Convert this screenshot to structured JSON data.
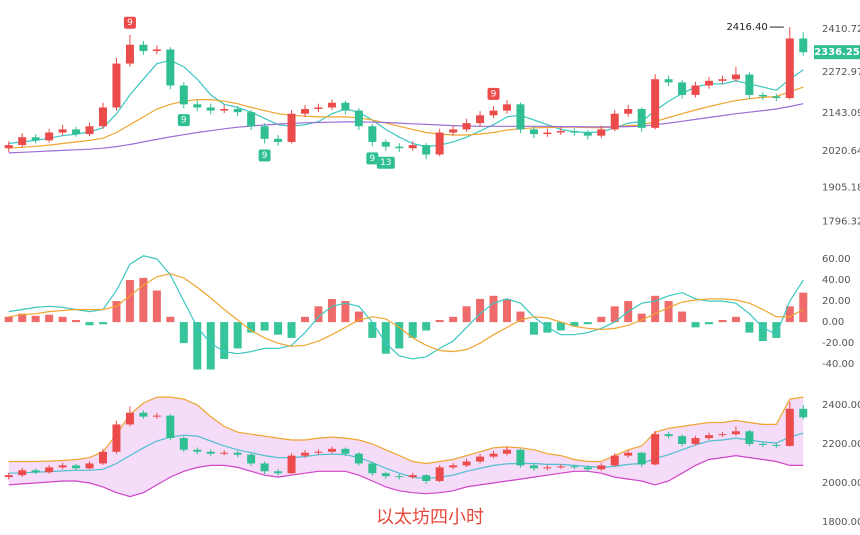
{
  "chart_data": [
    {
      "type": "candlestick",
      "up_color": "#ec4b4b",
      "down_color": "#2fbf93",
      "ylim": [
        1750,
        2490
      ],
      "yticks": [
        1796.32,
        1905.18,
        2020.64,
        2143.09,
        2272.97,
        2410.72
      ],
      "candles": [
        [
          2030,
          2052,
          2018,
          2040
        ],
        [
          2040,
          2078,
          2032,
          2065
        ],
        [
          2065,
          2074,
          2046,
          2055
        ],
        [
          2055,
          2092,
          2048,
          2080
        ],
        [
          2080,
          2104,
          2070,
          2090
        ],
        [
          2090,
          2098,
          2066,
          2075
        ],
        [
          2075,
          2112,
          2068,
          2100
        ],
        [
          2100,
          2175,
          2092,
          2160
        ],
        [
          2160,
          2318,
          2150,
          2300
        ],
        [
          2300,
          2392,
          2290,
          2360
        ],
        [
          2360,
          2372,
          2328,
          2340
        ],
        [
          2340,
          2358,
          2330,
          2345
        ],
        [
          2345,
          2352,
          2218,
          2230
        ],
        [
          2230,
          2240,
          2158,
          2170
        ],
        [
          2170,
          2182,
          2148,
          2160
        ],
        [
          2160,
          2172,
          2138,
          2150
        ],
        [
          2150,
          2168,
          2142,
          2155
        ],
        [
          2155,
          2164,
          2132,
          2145
        ],
        [
          2145,
          2152,
          2088,
          2100
        ],
        [
          2100,
          2110,
          2045,
          2060
        ],
        [
          2060,
          2072,
          2038,
          2050
        ],
        [
          2050,
          2152,
          2045,
          2140
        ],
        [
          2140,
          2168,
          2130,
          2155
        ],
        [
          2155,
          2172,
          2145,
          2160
        ],
        [
          2160,
          2186,
          2152,
          2175
        ],
        [
          2175,
          2182,
          2138,
          2150
        ],
        [
          2150,
          2158,
          2088,
          2100
        ],
        [
          2100,
          2108,
          2036,
          2050
        ],
        [
          2050,
          2058,
          2022,
          2035
        ],
        [
          2035,
          2046,
          2018,
          2030
        ],
        [
          2030,
          2052,
          2022,
          2040
        ],
        [
          2040,
          2046,
          1995,
          2010
        ],
        [
          2010,
          2092,
          2004,
          2080
        ],
        [
          2080,
          2102,
          2070,
          2090
        ],
        [
          2090,
          2124,
          2082,
          2110
        ],
        [
          2110,
          2148,
          2100,
          2135
        ],
        [
          2135,
          2165,
          2126,
          2150
        ],
        [
          2150,
          2184,
          2140,
          2170
        ],
        [
          2170,
          2176,
          2078,
          2090
        ],
        [
          2090,
          2098,
          2062,
          2075
        ],
        [
          2075,
          2092,
          2066,
          2080
        ],
        [
          2080,
          2096,
          2072,
          2085
        ],
        [
          2085,
          2094,
          2070,
          2080
        ],
        [
          2080,
          2088,
          2058,
          2070
        ],
        [
          2070,
          2102,
          2062,
          2090
        ],
        [
          2090,
          2152,
          2084,
          2140
        ],
        [
          2140,
          2168,
          2130,
          2155
        ],
        [
          2155,
          2160,
          2082,
          2095
        ],
        [
          2095,
          2266,
          2090,
          2250
        ],
        [
          2250,
          2262,
          2228,
          2240
        ],
        [
          2240,
          2248,
          2188,
          2200
        ],
        [
          2200,
          2242,
          2192,
          2230
        ],
        [
          2230,
          2258,
          2220,
          2245
        ],
        [
          2245,
          2262,
          2236,
          2250
        ],
        [
          2250,
          2290,
          2242,
          2265
        ],
        [
          2265,
          2272,
          2188,
          2200
        ],
        [
          2200,
          2208,
          2184,
          2195
        ],
        [
          2195,
          2204,
          2180,
          2190
        ],
        [
          2190,
          2416.4,
          2185,
          2380
        ],
        [
          2380,
          2400,
          2325,
          2336.25
        ]
      ],
      "max_label": "2416.40",
      "ma": [
        {
          "color": "#3cc7c0",
          "values": [
            2045,
            2050,
            2055,
            2062,
            2070,
            2075,
            2082,
            2095,
            2140,
            2200,
            2250,
            2300,
            2310,
            2290,
            2250,
            2200,
            2170,
            2160,
            2145,
            2125,
            2105,
            2100,
            2105,
            2115,
            2140,
            2155,
            2145,
            2120,
            2090,
            2065,
            2045,
            2035,
            2040,
            2050,
            2065,
            2085,
            2105,
            2130,
            2135,
            2120,
            2105,
            2090,
            2082,
            2080,
            2082,
            2095,
            2110,
            2115,
            2150,
            2180,
            2205,
            2225,
            2235,
            2235,
            2245,
            2235,
            2225,
            2215,
            2250,
            2280
          ]
        },
        {
          "color": "#f0a530",
          "values": [
            2030,
            2033,
            2036,
            2040,
            2045,
            2050,
            2055,
            2062,
            2080,
            2105,
            2130,
            2155,
            2170,
            2180,
            2185,
            2185,
            2180,
            2172,
            2160,
            2150,
            2140,
            2135,
            2132,
            2130,
            2130,
            2130,
            2127,
            2120,
            2110,
            2100,
            2090,
            2080,
            2075,
            2072,
            2072,
            2075,
            2080,
            2088,
            2092,
            2095,
            2096,
            2097,
            2097,
            2096,
            2095,
            2098,
            2102,
            2104,
            2115,
            2128,
            2140,
            2152,
            2163,
            2173,
            2182,
            2188,
            2192,
            2195,
            2210,
            2225
          ]
        },
        {
          "color": "#9b6fd8",
          "values": [
            2015,
            2017,
            2019,
            2021,
            2023,
            2025,
            2027,
            2030,
            2035,
            2042,
            2050,
            2058,
            2066,
            2073,
            2080,
            2086,
            2092,
            2097,
            2101,
            2104,
            2107,
            2109,
            2111,
            2112,
            2113,
            2114,
            2114,
            2113,
            2112,
            2110,
            2108,
            2106,
            2104,
            2102,
            2101,
            2100,
            2100,
            2100,
            2100,
            2100,
            2100,
            2099,
            2099,
            2098,
            2098,
            2098,
            2099,
            2100,
            2105,
            2110,
            2116,
            2122,
            2128,
            2134,
            2140,
            2145,
            2150,
            2155,
            2163,
            2172
          ]
        }
      ],
      "td_above": [
        null,
        null,
        null,
        null,
        null,
        null,
        null,
        null,
        null,
        "9",
        null,
        null,
        null,
        null,
        null,
        null,
        null,
        null,
        null,
        null,
        null,
        null,
        null,
        null,
        null,
        null,
        null,
        null,
        null,
        null,
        null,
        null,
        null,
        null,
        null,
        null,
        "9",
        null,
        null,
        null,
        null,
        null,
        null,
        null,
        null,
        null,
        null,
        null,
        null,
        null,
        null,
        null,
        null,
        null,
        null,
        null,
        null,
        null,
        null,
        null
      ],
      "td_below": [
        null,
        null,
        null,
        null,
        null,
        null,
        null,
        null,
        null,
        null,
        null,
        null,
        null,
        "9",
        null,
        null,
        null,
        null,
        null,
        "9",
        null,
        null,
        null,
        null,
        null,
        null,
        null,
        "9",
        "13",
        null,
        null,
        null,
        null,
        null,
        null,
        null,
        null,
        null,
        null,
        null,
        null,
        null,
        null,
        null,
        null,
        null,
        null,
        null,
        null,
        null,
        null,
        null,
        null,
        null,
        null,
        null,
        null,
        null,
        null,
        null
      ]
    },
    {
      "type": "macd",
      "up_color": "#ef6a6a",
      "down_color": "#36c49b",
      "ylim": [
        -55,
        78
      ],
      "yticks": [
        {
          "value": -40,
          "label": "-40.00"
        },
        {
          "value": -20,
          "label": "-20.00"
        },
        {
          "value": 0,
          "label": "0.00"
        },
        {
          "value": 20,
          "label": "20.00"
        },
        {
          "value": 40,
          "label": "40.00"
        },
        {
          "value": 60,
          "label": "60.00"
        }
      ],
      "values": [
        5,
        8,
        6,
        7,
        5,
        2,
        -3,
        -2,
        20,
        40,
        42,
        30,
        5,
        -20,
        -45,
        -45,
        -35,
        -25,
        -10,
        -8,
        -12,
        -15,
        5,
        15,
        22,
        20,
        10,
        -15,
        -30,
        -25,
        -15,
        -8,
        2,
        5,
        15,
        22,
        25,
        22,
        10,
        -12,
        -10,
        -8,
        -4,
        -2,
        5,
        15,
        20,
        8,
        25,
        20,
        10,
        -5,
        -2,
        2,
        5,
        -10,
        -18,
        -15,
        15,
        28
      ],
      "lines": [
        {
          "color": "#3cc7c0",
          "values": [
            10,
            12,
            14,
            15,
            14,
            12,
            10,
            12,
            30,
            55,
            63,
            60,
            45,
            20,
            -5,
            -20,
            -28,
            -30,
            -28,
            -25,
            -25,
            -22,
            -10,
            5,
            15,
            18,
            15,
            0,
            -20,
            -32,
            -35,
            -33,
            -25,
            -18,
            -5,
            8,
            18,
            22,
            18,
            5,
            -5,
            -12,
            -12,
            -10,
            -6,
            0,
            10,
            18,
            20,
            25,
            28,
            22,
            20,
            20,
            18,
            8,
            -5,
            -12,
            20,
            40
          ]
        },
        {
          "color": "#f0a530",
          "values": [
            5,
            7,
            8,
            10,
            11,
            12,
            12,
            12,
            15,
            25,
            35,
            43,
            46,
            42,
            33,
            23,
            12,
            2,
            -8,
            -15,
            -20,
            -23,
            -22,
            -18,
            -12,
            -5,
            2,
            5,
            3,
            -5,
            -15,
            -22,
            -27,
            -28,
            -26,
            -20,
            -12,
            -5,
            2,
            5,
            4,
            0,
            -4,
            -6,
            -7,
            -6,
            -3,
            2,
            8,
            14,
            19,
            21,
            22,
            22,
            21,
            18,
            12,
            5,
            5,
            12
          ]
        }
      ]
    },
    {
      "type": "bollinger",
      "caption": "以太坊四小时",
      "band_color": "#f5dcf8",
      "ylim": [
        1759,
        2502
      ],
      "yticks": [
        {
          "value": 1800,
          "label": "1800.00"
        },
        {
          "value": 2000,
          "label": "2000.00"
        },
        {
          "value": 2200,
          "label": "2200.00"
        },
        {
          "value": 2400,
          "label": "2400.00"
        }
      ],
      "upper": {
        "color": "#f0a530",
        "values": [
          2110,
          2110,
          2110,
          2112,
          2115,
          2120,
          2130,
          2160,
          2250,
          2350,
          2410,
          2440,
          2440,
          2430,
          2400,
          2340,
          2290,
          2260,
          2250,
          2240,
          2230,
          2220,
          2220,
          2230,
          2235,
          2230,
          2220,
          2200,
          2170,
          2140,
          2110,
          2100,
          2110,
          2120,
          2140,
          2160,
          2180,
          2185,
          2180,
          2170,
          2150,
          2140,
          2120,
          2110,
          2110,
          2140,
          2170,
          2190,
          2260,
          2280,
          2290,
          2300,
          2310,
          2310,
          2320,
          2310,
          2300,
          2300,
          2430,
          2440
        ]
      },
      "middle": {
        "color": "#4fbfd0",
        "values": [
          2050,
          2052,
          2055,
          2058,
          2062,
          2065,
          2065,
          2070,
          2100,
          2140,
          2180,
          2215,
          2235,
          2245,
          2240,
          2215,
          2190,
          2170,
          2155,
          2140,
          2130,
          2130,
          2135,
          2145,
          2148,
          2145,
          2130,
          2105,
          2075,
          2050,
          2030,
          2022,
          2030,
          2040,
          2060,
          2075,
          2090,
          2098,
          2100,
          2100,
          2095,
          2095,
          2090,
          2085,
          2080,
          2085,
          2095,
          2100,
          2125,
          2145,
          2170,
          2195,
          2215,
          2220,
          2230,
          2220,
          2210,
          2205,
          2235,
          2255
        ]
      },
      "lower": {
        "color": "#d046c8",
        "values": [
          1990,
          1995,
          2000,
          2005,
          2010,
          2010,
          2000,
          1980,
          1950,
          1930,
          1950,
          1990,
          2030,
          2060,
          2080,
          2090,
          2090,
          2080,
          2060,
          2040,
          2030,
          2040,
          2050,
          2060,
          2060,
          2060,
          2040,
          2010,
          1980,
          1960,
          1950,
          1945,
          1950,
          1960,
          1980,
          1990,
          2000,
          2010,
          2020,
          2030,
          2040,
          2050,
          2060,
          2060,
          2050,
          2030,
          2020,
          2010,
          1990,
          2010,
          2050,
          2090,
          2120,
          2130,
          2140,
          2130,
          2120,
          2110,
          2090,
          2090
        ]
      }
    }
  ]
}
